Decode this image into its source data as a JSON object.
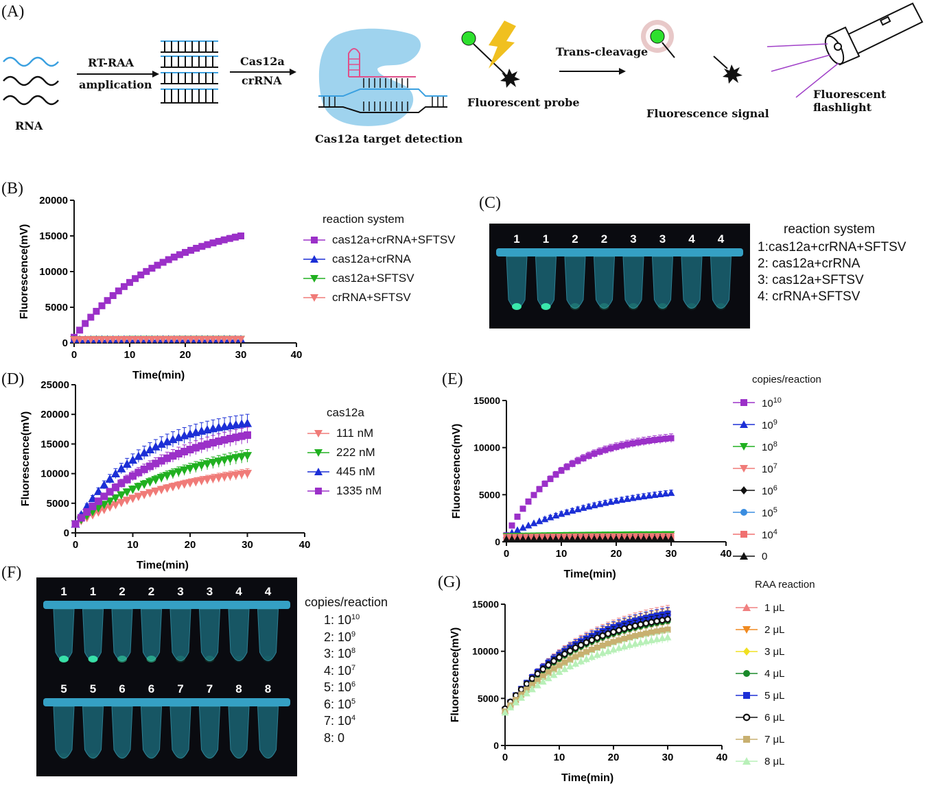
{
  "panels": [
    "(A)",
    "(B)",
    "(C)",
    "(D)",
    "(E)",
    "(F)",
    "(G)"
  ],
  "schematic": {
    "rna": "RNA",
    "step1_top": "RT-RAA",
    "step1_bottom": "amplication",
    "step2_top": "Cas12a",
    "step2_bottom": "crRNA",
    "cas_label": "Cas12a target detection",
    "probe_label": "Fluorescent probe",
    "trans_label": "Trans-cleavage",
    "signal_label": "Fluorescence signal",
    "flash_label": "Fluorescent flashlight"
  },
  "legend_C": {
    "title": "reaction system",
    "items": [
      "1:cas12a+crRNA+SFTSV",
      "2: cas12a+crRNA",
      "3: cas12a+SFTSV",
      "4: crRNA+SFTSV"
    ],
    "tube_labels": [
      "1",
      "1",
      "2",
      "2",
      "3",
      "3",
      "4",
      "4"
    ]
  },
  "legend_F": {
    "title": "copies/reaction",
    "items": [
      {
        "k": "1:",
        "base": "10",
        "exp": "10"
      },
      {
        "k": "2:",
        "base": "10",
        "exp": "9"
      },
      {
        "k": "3:",
        "base": "10",
        "exp": "8"
      },
      {
        "k": "4:",
        "base": "10",
        "exp": "7"
      },
      {
        "k": "5:",
        "base": "10",
        "exp": "6"
      },
      {
        "k": "6:",
        "base": "10",
        "exp": "5"
      },
      {
        "k": "7:",
        "base": "10",
        "exp": "4"
      },
      {
        "k": "8:",
        "base": "0",
        "exp": ""
      }
    ],
    "tube_labels_top": [
      "1",
      "1",
      "2",
      "2",
      "3",
      "3",
      "4",
      "4"
    ],
    "tube_labels_bottom": [
      "5",
      "5",
      "6",
      "6",
      "7",
      "7",
      "8",
      "8"
    ]
  },
  "chart_data": [
    {
      "id": "B",
      "type": "scatter",
      "xlabel": "Time(min)",
      "ylabel": "Fluorescence(mV)",
      "xlim": [
        0,
        40
      ],
      "ylim": [
        0,
        20000
      ],
      "xticks": [
        0,
        10,
        20,
        30,
        40
      ],
      "yticks": [
        0,
        5000,
        10000,
        15000,
        20000
      ],
      "legend_title": "reaction system",
      "series": [
        {
          "name": "cas12a+crRNA+SFTSV",
          "color": "#9b30c8",
          "marker": "square",
          "start": 800,
          "end": 15000,
          "k": 0.06
        },
        {
          "name": "cas12a+crRNA",
          "color": "#1c2fd6",
          "marker": "tri-up",
          "start": 500,
          "end": 550,
          "k": 0.05
        },
        {
          "name": "cas12a+SFTSV",
          "color": "#20b020",
          "marker": "tri-down",
          "start": 480,
          "end": 520,
          "k": 0.05
        },
        {
          "name": "crRNA+SFTSV",
          "color": "#f07b78",
          "marker": "tri-down",
          "start": 460,
          "end": 500,
          "k": 0.05
        }
      ]
    },
    {
      "id": "D",
      "type": "scatter",
      "xlabel": "Time(min)",
      "ylabel": "Fluorescence(mV)",
      "xlim": [
        0,
        40
      ],
      "ylim": [
        0,
        25000
      ],
      "xticks": [
        0,
        10,
        20,
        30,
        40
      ],
      "yticks": [
        0,
        5000,
        10000,
        15000,
        20000,
        25000
      ],
      "legend_title": "cas12a",
      "series": [
        {
          "name": "111 nM",
          "color": "#f07b78",
          "marker": "tri-down",
          "start": 1500,
          "end": 10000,
          "k": 0.05
        },
        {
          "name": "222 nM",
          "color": "#20b020",
          "marker": "tri-down",
          "start": 1500,
          "end": 13000,
          "k": 0.05
        },
        {
          "name": "445 nM",
          "color": "#1c2fd6",
          "marker": "tri-up",
          "start": 1500,
          "end": 18500,
          "k": 0.09
        },
        {
          "name": "1335 nM",
          "color": "#9b30c8",
          "marker": "square",
          "start": 1500,
          "end": 16500,
          "k": 0.06
        }
      ]
    },
    {
      "id": "E",
      "type": "scatter",
      "xlabel": "Time(min)",
      "ylabel": "Fluorescence(mV)",
      "xlim": [
        0,
        40
      ],
      "ylim": [
        0,
        15000
      ],
      "xticks": [
        0,
        10,
        20,
        30,
        40
      ],
      "yticks": [
        0,
        5000,
        10000,
        15000
      ],
      "legend_title": "copies/reaction",
      "series": [
        {
          "name": "10^10",
          "base": "10",
          "exp": "10",
          "color": "#9b30c8",
          "marker": "square",
          "start": 700,
          "end": 11000,
          "k": 0.1
        },
        {
          "name": "10^9",
          "base": "10",
          "exp": "9",
          "color": "#1c2fd6",
          "marker": "tri-up",
          "start": 700,
          "end": 5200,
          "k": 0.05
        },
        {
          "name": "10^8",
          "base": "10",
          "exp": "8",
          "color": "#20b020",
          "marker": "tri-down",
          "start": 600,
          "end": 800,
          "k": 0.05
        },
        {
          "name": "10^7",
          "base": "10",
          "exp": "7",
          "color": "#f07b78",
          "marker": "tri-down",
          "start": 500,
          "end": 600,
          "k": 0.05
        },
        {
          "name": "10^6",
          "base": "10",
          "exp": "6",
          "color": "#111111",
          "marker": "diamond",
          "start": 400,
          "end": 450,
          "k": 0.05
        },
        {
          "name": "10^5",
          "base": "10",
          "exp": "5",
          "color": "#3a8de0",
          "marker": "circle",
          "start": 380,
          "end": 420,
          "k": 0.05
        },
        {
          "name": "10^4",
          "base": "10",
          "exp": "4",
          "color": "#f07070",
          "marker": "square",
          "start": 350,
          "end": 400,
          "k": 0.05
        },
        {
          "name": "0",
          "base": "0",
          "exp": "",
          "color": "#111111",
          "marker": "tri-up",
          "start": 300,
          "end": 350,
          "k": 0.05
        }
      ]
    },
    {
      "id": "G",
      "type": "scatter",
      "xlabel": "Time(min)",
      "ylabel": "Fluorescence(mV)",
      "xlim": [
        0,
        40
      ],
      "ylim": [
        0,
        15000
      ],
      "xticks": [
        0,
        10,
        20,
        30,
        40
      ],
      "yticks": [
        0,
        5000,
        10000,
        15000
      ],
      "legend_title": "RAA reaction",
      "series": [
        {
          "name": "1 μL",
          "color": "#f08080",
          "marker": "tri-up",
          "start": 3700,
          "end": 14200,
          "k": 0.07
        },
        {
          "name": "2 μL",
          "color": "#f08a20",
          "marker": "tri-down",
          "start": 3700,
          "end": 13900,
          "k": 0.07
        },
        {
          "name": "3 μL",
          "color": "#f0e020",
          "marker": "diamond",
          "start": 3700,
          "end": 13700,
          "k": 0.07
        },
        {
          "name": "4 μL",
          "color": "#1a8a2a",
          "marker": "circle",
          "start": 3800,
          "end": 13200,
          "k": 0.07
        },
        {
          "name": "5 μL",
          "color": "#1c2fd6",
          "marker": "square",
          "start": 3800,
          "end": 14000,
          "k": 0.07
        },
        {
          "name": "6 μL",
          "color": "#111111",
          "marker": "ring",
          "start": 3900,
          "end": 13400,
          "k": 0.07
        },
        {
          "name": "7 μL",
          "color": "#c8b070",
          "marker": "square",
          "start": 3600,
          "end": 12300,
          "k": 0.065
        },
        {
          "name": "8 μL",
          "color": "#b8f0b8",
          "marker": "tri-up",
          "start": 3500,
          "end": 11500,
          "k": 0.06
        }
      ]
    }
  ]
}
